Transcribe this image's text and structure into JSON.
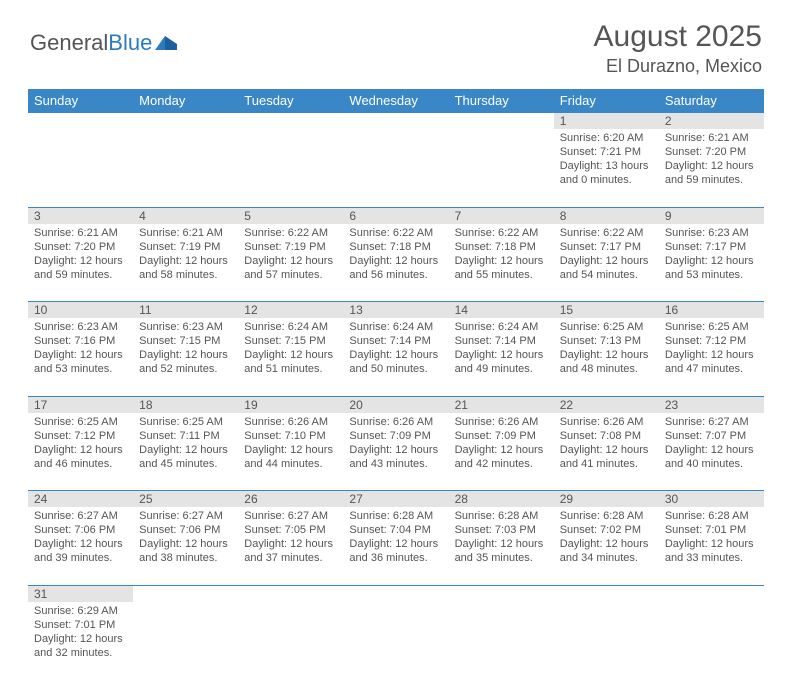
{
  "brand": {
    "general": "General",
    "blue": "Blue"
  },
  "title": {
    "month": "August 2025",
    "location": "El Durazno, Mexico"
  },
  "colors": {
    "header_bg": "#3a87c8",
    "header_text": "#ffffff",
    "daynum_bg": "#e4e4e4",
    "text": "#555555",
    "accent": "#2b7bbf",
    "row_border": "#3a87c8"
  },
  "daysOfWeek": [
    "Sunday",
    "Monday",
    "Tuesday",
    "Wednesday",
    "Thursday",
    "Friday",
    "Saturday"
  ],
  "weeks": [
    [
      null,
      null,
      null,
      null,
      null,
      {
        "n": "1",
        "sr": "Sunrise: 6:20 AM",
        "ss": "Sunset: 7:21 PM",
        "d1": "Daylight: 13 hours",
        "d2": "and 0 minutes."
      },
      {
        "n": "2",
        "sr": "Sunrise: 6:21 AM",
        "ss": "Sunset: 7:20 PM",
        "d1": "Daylight: 12 hours",
        "d2": "and 59 minutes."
      }
    ],
    [
      {
        "n": "3",
        "sr": "Sunrise: 6:21 AM",
        "ss": "Sunset: 7:20 PM",
        "d1": "Daylight: 12 hours",
        "d2": "and 59 minutes."
      },
      {
        "n": "4",
        "sr": "Sunrise: 6:21 AM",
        "ss": "Sunset: 7:19 PM",
        "d1": "Daylight: 12 hours",
        "d2": "and 58 minutes."
      },
      {
        "n": "5",
        "sr": "Sunrise: 6:22 AM",
        "ss": "Sunset: 7:19 PM",
        "d1": "Daylight: 12 hours",
        "d2": "and 57 minutes."
      },
      {
        "n": "6",
        "sr": "Sunrise: 6:22 AM",
        "ss": "Sunset: 7:18 PM",
        "d1": "Daylight: 12 hours",
        "d2": "and 56 minutes."
      },
      {
        "n": "7",
        "sr": "Sunrise: 6:22 AM",
        "ss": "Sunset: 7:18 PM",
        "d1": "Daylight: 12 hours",
        "d2": "and 55 minutes."
      },
      {
        "n": "8",
        "sr": "Sunrise: 6:22 AM",
        "ss": "Sunset: 7:17 PM",
        "d1": "Daylight: 12 hours",
        "d2": "and 54 minutes."
      },
      {
        "n": "9",
        "sr": "Sunrise: 6:23 AM",
        "ss": "Sunset: 7:17 PM",
        "d1": "Daylight: 12 hours",
        "d2": "and 53 minutes."
      }
    ],
    [
      {
        "n": "10",
        "sr": "Sunrise: 6:23 AM",
        "ss": "Sunset: 7:16 PM",
        "d1": "Daylight: 12 hours",
        "d2": "and 53 minutes."
      },
      {
        "n": "11",
        "sr": "Sunrise: 6:23 AM",
        "ss": "Sunset: 7:15 PM",
        "d1": "Daylight: 12 hours",
        "d2": "and 52 minutes."
      },
      {
        "n": "12",
        "sr": "Sunrise: 6:24 AM",
        "ss": "Sunset: 7:15 PM",
        "d1": "Daylight: 12 hours",
        "d2": "and 51 minutes."
      },
      {
        "n": "13",
        "sr": "Sunrise: 6:24 AM",
        "ss": "Sunset: 7:14 PM",
        "d1": "Daylight: 12 hours",
        "d2": "and 50 minutes."
      },
      {
        "n": "14",
        "sr": "Sunrise: 6:24 AM",
        "ss": "Sunset: 7:14 PM",
        "d1": "Daylight: 12 hours",
        "d2": "and 49 minutes."
      },
      {
        "n": "15",
        "sr": "Sunrise: 6:25 AM",
        "ss": "Sunset: 7:13 PM",
        "d1": "Daylight: 12 hours",
        "d2": "and 48 minutes."
      },
      {
        "n": "16",
        "sr": "Sunrise: 6:25 AM",
        "ss": "Sunset: 7:12 PM",
        "d1": "Daylight: 12 hours",
        "d2": "and 47 minutes."
      }
    ],
    [
      {
        "n": "17",
        "sr": "Sunrise: 6:25 AM",
        "ss": "Sunset: 7:12 PM",
        "d1": "Daylight: 12 hours",
        "d2": "and 46 minutes."
      },
      {
        "n": "18",
        "sr": "Sunrise: 6:25 AM",
        "ss": "Sunset: 7:11 PM",
        "d1": "Daylight: 12 hours",
        "d2": "and 45 minutes."
      },
      {
        "n": "19",
        "sr": "Sunrise: 6:26 AM",
        "ss": "Sunset: 7:10 PM",
        "d1": "Daylight: 12 hours",
        "d2": "and 44 minutes."
      },
      {
        "n": "20",
        "sr": "Sunrise: 6:26 AM",
        "ss": "Sunset: 7:09 PM",
        "d1": "Daylight: 12 hours",
        "d2": "and 43 minutes."
      },
      {
        "n": "21",
        "sr": "Sunrise: 6:26 AM",
        "ss": "Sunset: 7:09 PM",
        "d1": "Daylight: 12 hours",
        "d2": "and 42 minutes."
      },
      {
        "n": "22",
        "sr": "Sunrise: 6:26 AM",
        "ss": "Sunset: 7:08 PM",
        "d1": "Daylight: 12 hours",
        "d2": "and 41 minutes."
      },
      {
        "n": "23",
        "sr": "Sunrise: 6:27 AM",
        "ss": "Sunset: 7:07 PM",
        "d1": "Daylight: 12 hours",
        "d2": "and 40 minutes."
      }
    ],
    [
      {
        "n": "24",
        "sr": "Sunrise: 6:27 AM",
        "ss": "Sunset: 7:06 PM",
        "d1": "Daylight: 12 hours",
        "d2": "and 39 minutes."
      },
      {
        "n": "25",
        "sr": "Sunrise: 6:27 AM",
        "ss": "Sunset: 7:06 PM",
        "d1": "Daylight: 12 hours",
        "d2": "and 38 minutes."
      },
      {
        "n": "26",
        "sr": "Sunrise: 6:27 AM",
        "ss": "Sunset: 7:05 PM",
        "d1": "Daylight: 12 hours",
        "d2": "and 37 minutes."
      },
      {
        "n": "27",
        "sr": "Sunrise: 6:28 AM",
        "ss": "Sunset: 7:04 PM",
        "d1": "Daylight: 12 hours",
        "d2": "and 36 minutes."
      },
      {
        "n": "28",
        "sr": "Sunrise: 6:28 AM",
        "ss": "Sunset: 7:03 PM",
        "d1": "Daylight: 12 hours",
        "d2": "and 35 minutes."
      },
      {
        "n": "29",
        "sr": "Sunrise: 6:28 AM",
        "ss": "Sunset: 7:02 PM",
        "d1": "Daylight: 12 hours",
        "d2": "and 34 minutes."
      },
      {
        "n": "30",
        "sr": "Sunrise: 6:28 AM",
        "ss": "Sunset: 7:01 PM",
        "d1": "Daylight: 12 hours",
        "d2": "and 33 minutes."
      }
    ],
    [
      {
        "n": "31",
        "sr": "Sunrise: 6:29 AM",
        "ss": "Sunset: 7:01 PM",
        "d1": "Daylight: 12 hours",
        "d2": "and 32 minutes."
      },
      null,
      null,
      null,
      null,
      null,
      null
    ]
  ]
}
